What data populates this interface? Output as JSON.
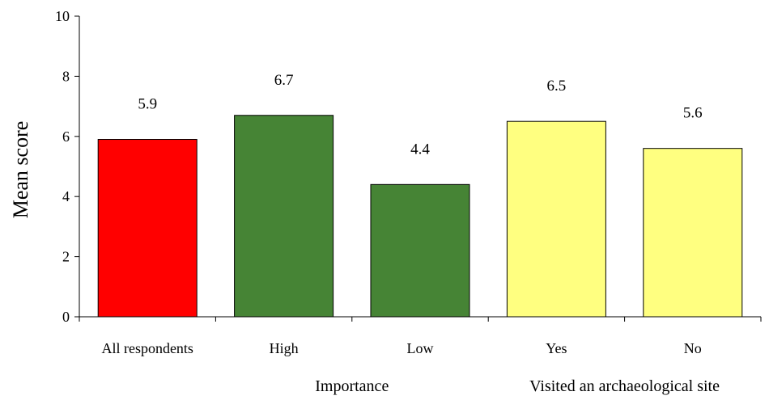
{
  "chart_data": {
    "type": "bar",
    "title": "",
    "xlabel": "",
    "ylabel": "Mean score",
    "ylim": [
      0,
      10
    ],
    "yticks": [
      0,
      2,
      4,
      6,
      8,
      10
    ],
    "grid": false,
    "categories": [
      "All respondents",
      "High",
      "Low",
      "Yes",
      "No"
    ],
    "values": [
      5.9,
      6.7,
      4.4,
      6.5,
      5.6
    ],
    "data_labels": [
      "5.9",
      "6.7",
      "4.4",
      "6.5",
      "5.6"
    ],
    "bar_colors": [
      "#ff0000",
      "#468435",
      "#468435",
      "#ffff80",
      "#ffff80"
    ],
    "groups": [
      {
        "label": "Importance",
        "categories": [
          "High",
          "Low"
        ]
      },
      {
        "label": "Visited an archaeological site",
        "categories": [
          "Yes",
          "No"
        ]
      }
    ]
  }
}
